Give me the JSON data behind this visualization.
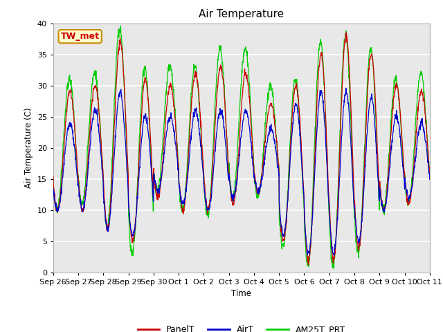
{
  "title": "Air Temperature",
  "ylabel": "Air Temperature (C)",
  "xlabel": "Time",
  "annotation": "TW_met",
  "ylim": [
    0,
    40
  ],
  "fig_bg_color": "#ffffff",
  "plot_bg_color": "#e8e8e8",
  "grid_color": "white",
  "line_colors": {
    "PanelT": "#cc0000",
    "AirT": "#0000cc",
    "AM25T_PRT": "#00cc00"
  },
  "legend_labels": [
    "PanelT",
    "AirT",
    "AM25T_PRT"
  ],
  "xtick_labels": [
    "Sep 26",
    "Sep 27",
    "Sep 28",
    "Sep 29",
    "Sep 30",
    "Oct 1",
    "Oct 2",
    "Oct 3",
    "Oct 4",
    "Oct 5",
    "Oct 6",
    "Oct 7",
    "Oct 8",
    "Oct 9",
    "Oct 10",
    "Oct 11"
  ],
  "num_days": 15,
  "points_per_day": 96,
  "day_mins_panel": [
    10,
    10,
    7,
    5,
    12,
    10,
    10,
    11,
    13,
    5,
    2,
    2,
    4,
    10,
    11
  ],
  "day_maxs_panel": [
    29,
    30,
    37,
    31,
    30,
    32,
    33,
    32,
    27,
    30,
    35,
    38,
    35,
    30,
    29
  ],
  "day_mins_air": [
    10,
    10,
    7,
    6,
    13,
    11,
    10,
    12,
    13,
    6,
    3,
    3,
    5,
    10,
    12
  ],
  "day_maxs_air": [
    24,
    26,
    29,
    25,
    25,
    26,
    26,
    26,
    23,
    27,
    29,
    29,
    28,
    25,
    24
  ],
  "day_mins_am25": [
    10,
    11,
    7,
    3,
    13,
    10,
    9,
    12,
    12,
    4,
    1,
    1,
    3,
    10,
    11
  ],
  "day_maxs_am25": [
    31,
    32,
    39,
    33,
    33,
    33,
    36,
    36,
    30,
    31,
    37,
    38,
    36,
    31,
    32
  ]
}
